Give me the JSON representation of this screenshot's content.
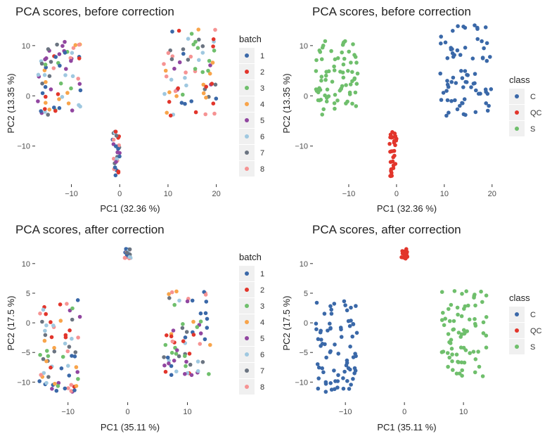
{
  "colors": {
    "palette": [
      "#3a68a8",
      "#e2352b",
      "#6fbf6c",
      "#f8a44a",
      "#9146a0",
      "#9fc8e0",
      "#6b7481",
      "#f69393"
    ],
    "class_colors": {
      "C": "#3a68a8",
      "QC": "#e2352b",
      "S": "#6fbf6c"
    },
    "legend_key_bg": "#f0f0f0"
  },
  "chart_data": [
    {
      "type": "scatter",
      "title": "PCA scores, before correction",
      "xlabel": "PC1 (32.36 %)",
      "ylabel": "PC2 (13.35 %)",
      "xlim": [
        -17.5,
        21.8
      ],
      "ylim": [
        -17.6,
        14.6
      ],
      "xticks": [
        -10,
        0,
        10,
        20
      ],
      "yticks": [
        -10,
        0,
        10
      ],
      "grid": false,
      "legend_position": "right",
      "color_by": "batch",
      "legend": {
        "title": "batch",
        "entries": [
          "1",
          "2",
          "3",
          "4",
          "5",
          "6",
          "7",
          "8"
        ]
      },
      "clusters": [
        {
          "name": "S",
          "x": [
            -17,
            -8
          ],
          "y": [
            -4,
            11
          ],
          "n": 70,
          "mix": [
            1,
            2,
            3,
            4,
            5,
            6,
            7,
            8
          ]
        },
        {
          "name": "C",
          "x": [
            9,
            20
          ],
          "y": [
            -4,
            14.5
          ],
          "n": 70,
          "mix": [
            1,
            2,
            3,
            4,
            5,
            6,
            7,
            8
          ]
        },
        {
          "name": "QC",
          "x": [
            -1.5,
            0
          ],
          "y": [
            -16,
            -7
          ],
          "n": 30,
          "mix": [
            6,
            7,
            8,
            2,
            5,
            1
          ]
        }
      ]
    },
    {
      "type": "scatter",
      "title": "PCA scores, before correction",
      "xlabel": "PC1 (32.36 %)",
      "ylabel": "PC2 (13.35 %)",
      "xlim": [
        -17.5,
        21.8
      ],
      "ylim": [
        -17.6,
        14.6
      ],
      "xticks": [
        -10,
        0,
        10,
        20
      ],
      "yticks": [
        -10,
        0,
        10
      ],
      "grid": false,
      "legend_position": "right",
      "color_by": "class",
      "legend": {
        "title": "class",
        "entries": [
          "C",
          "QC",
          "S"
        ]
      },
      "clusters": [
        {
          "name": "S",
          "class": "S",
          "x": [
            -17,
            -8
          ],
          "y": [
            -4,
            11
          ],
          "n": 75
        },
        {
          "name": "C",
          "class": "C",
          "x": [
            9,
            20
          ],
          "y": [
            -4,
            14.5
          ],
          "n": 75
        },
        {
          "name": "QC",
          "class": "QC",
          "x": [
            -1.5,
            0
          ],
          "y": [
            -16,
            -7
          ],
          "n": 30
        }
      ]
    },
    {
      "type": "scatter",
      "title": "PCA scores, after correction",
      "xlabel": "PC1 (35.11 %)",
      "ylabel": "PC2 (17.5 %)",
      "xlim": [
        -15.5,
        16.3
      ],
      "ylim": [
        -13.4,
        13.3
      ],
      "xticks": [
        -10,
        0,
        10
      ],
      "yticks": [
        -10,
        -5,
        0,
        5,
        10
      ],
      "grid": false,
      "legend_position": "right",
      "color_by": "batch",
      "legend": {
        "title": "batch",
        "entries": [
          "1",
          "2",
          "3",
          "4",
          "5",
          "6",
          "7",
          "8"
        ]
      },
      "clusters": [
        {
          "name": "C",
          "x": [
            -15,
            -8
          ],
          "y": [
            -12,
            4
          ],
          "n": 70,
          "mix": [
            1,
            2,
            3,
            4,
            5,
            6,
            7,
            8
          ]
        },
        {
          "name": "S",
          "x": [
            6,
            14
          ],
          "y": [
            -9.5,
            5.5
          ],
          "n": 70,
          "mix": [
            1,
            2,
            3,
            4,
            5,
            6,
            7,
            8
          ]
        },
        {
          "name": "QC",
          "x": [
            -0.5,
            0.5
          ],
          "y": [
            10.8,
            12.5
          ],
          "n": 22,
          "mix": [
            6,
            7,
            1,
            8
          ]
        }
      ]
    },
    {
      "type": "scatter",
      "title": "PCA scores, after correction",
      "xlabel": "PC1 (35.11 %)",
      "ylabel": "PC2 (17.5 %)",
      "xlim": [
        -15.5,
        16.3
      ],
      "ylim": [
        -13.4,
        13.3
      ],
      "xticks": [
        -10,
        0,
        10
      ],
      "yticks": [
        -10,
        -5,
        0,
        5,
        10
      ],
      "grid": false,
      "legend_position": "right",
      "color_by": "class",
      "legend": {
        "title": "class",
        "entries": [
          "C",
          "QC",
          "S"
        ]
      },
      "clusters": [
        {
          "name": "C",
          "class": "C",
          "x": [
            -15,
            -8
          ],
          "y": [
            -12,
            4
          ],
          "n": 75
        },
        {
          "name": "S",
          "class": "S",
          "x": [
            6,
            14
          ],
          "y": [
            -9.5,
            5.5
          ],
          "n": 75
        },
        {
          "name": "QC",
          "class": "QC",
          "x": [
            -0.5,
            0.5
          ],
          "y": [
            10.8,
            12.5
          ],
          "n": 22
        }
      ]
    }
  ]
}
